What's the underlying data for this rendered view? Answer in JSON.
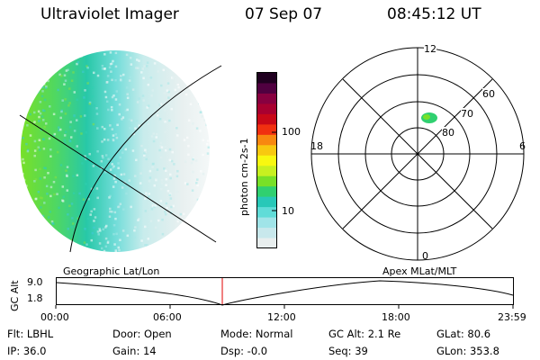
{
  "header": {
    "instrument": "Ultraviolet Imager",
    "date": "07 Sep 07",
    "time": "08:45:12 UT"
  },
  "colorbar": {
    "unit_label": "photon cm-2s-1",
    "ticks": [
      "100",
      "10"
    ],
    "colors": [
      "#e8eeee",
      "#c8e8ec",
      "#a0e4e8",
      "#60dcd8",
      "#28c8b8",
      "#30d070",
      "#78e028",
      "#c8f020",
      "#f8f810",
      "#f8c810",
      "#f88810",
      "#f03010",
      "#c80818",
      "#a80030",
      "#880040",
      "#500040",
      "#200020"
    ]
  },
  "polar_plot": {
    "mlt_labels": {
      "top": "12",
      "bottom": "0",
      "left": "18",
      "right": "6"
    },
    "lat_labels": [
      "60",
      "70",
      "80"
    ]
  },
  "timeline": {
    "left_caption": "Geographic Lat/Lon",
    "right_caption": "Apex MLat/MLT",
    "axis_label": "GC Alt",
    "y_ticks": [
      "9.0",
      "1.8"
    ],
    "x_ticks": [
      "00:00",
      "06:00",
      "12:00",
      "18:00",
      "23:59"
    ],
    "marker_color": "#e00000"
  },
  "info": {
    "row1": {
      "filter": "Flt: LBHL",
      "door": "Door: Open",
      "mode": "Mode: Normal",
      "gc_alt": "GC Alt: 2.1 Re",
      "glat": "GLat:  80.6"
    },
    "row2": {
      "ip": "IP: 36.0",
      "gain": "Gain: 14",
      "dsp": "Dsp:    -0.0",
      "seq": "Seq: 39",
      "glon": "GLon: 353.8"
    }
  }
}
